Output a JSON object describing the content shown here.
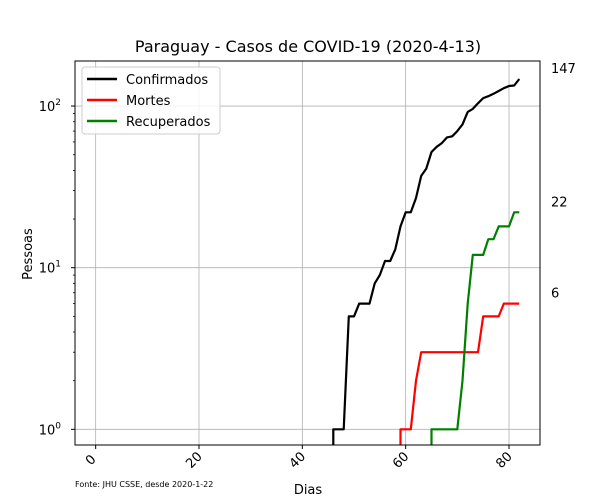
{
  "chart_data": {
    "type": "line",
    "title": "Paraguay - Casos de COVID-19 (2020-4-13)",
    "xlabel": "Dias",
    "ylabel": "Pessoas",
    "yscale": "log",
    "xlim": [
      -4,
      86
    ],
    "ylim": [
      0.8,
      190
    ],
    "x_ticks": [
      0,
      20,
      40,
      60,
      80
    ],
    "y_ticks": [
      {
        "value": 1,
        "label": "10",
        "exp": "0"
      },
      {
        "value": 10,
        "label": "10",
        "exp": "1"
      },
      {
        "value": 100,
        "label": "10",
        "exp": "2"
      }
    ],
    "grid": true,
    "legend_position": "top-left",
    "series": [
      {
        "name": "Confirmados",
        "color": "#000000",
        "end_label": "147",
        "points": [
          [
            46,
            0.8
          ],
          [
            46,
            1
          ],
          [
            48,
            1
          ],
          [
            49,
            5
          ],
          [
            50,
            5
          ],
          [
            51,
            6
          ],
          [
            53,
            6
          ],
          [
            54,
            8
          ],
          [
            55,
            9
          ],
          [
            56,
            11
          ],
          [
            57,
            11
          ],
          [
            58,
            13
          ],
          [
            59,
            18
          ],
          [
            60,
            22
          ],
          [
            61,
            22
          ],
          [
            62,
            27
          ],
          [
            63,
            37
          ],
          [
            64,
            41
          ],
          [
            65,
            52
          ],
          [
            66,
            56
          ],
          [
            67,
            59
          ],
          [
            68,
            64
          ],
          [
            69,
            65
          ],
          [
            70,
            70
          ],
          [
            71,
            77
          ],
          [
            72,
            92
          ],
          [
            73,
            96
          ],
          [
            74,
            104
          ],
          [
            75,
            112
          ],
          [
            76,
            115
          ],
          [
            77,
            119
          ],
          [
            78,
            124
          ],
          [
            79,
            129
          ],
          [
            80,
            133
          ],
          [
            81,
            134
          ],
          [
            82,
            147
          ]
        ]
      },
      {
        "name": "Mortes",
        "color": "#ff0000",
        "end_label": "6",
        "points": [
          [
            59,
            0.8
          ],
          [
            59,
            1
          ],
          [
            61,
            1
          ],
          [
            62,
            2
          ],
          [
            63,
            3
          ],
          [
            74,
            3
          ],
          [
            75,
            5
          ],
          [
            78,
            5
          ],
          [
            79,
            6
          ],
          [
            82,
            6
          ]
        ]
      },
      {
        "name": "Recuperados",
        "color": "#008000",
        "end_label": "22",
        "points": [
          [
            65,
            0.8
          ],
          [
            65,
            1
          ],
          [
            70,
            1
          ],
          [
            71,
            2
          ],
          [
            72,
            6
          ],
          [
            73,
            12
          ],
          [
            75,
            12
          ],
          [
            76,
            15
          ],
          [
            77,
            15
          ],
          [
            78,
            18
          ],
          [
            80,
            18
          ],
          [
            81,
            22
          ],
          [
            82,
            22
          ]
        ]
      }
    ]
  },
  "footer": {
    "source": "Fonte: JHU CSSE, desde 2020-1-22"
  }
}
